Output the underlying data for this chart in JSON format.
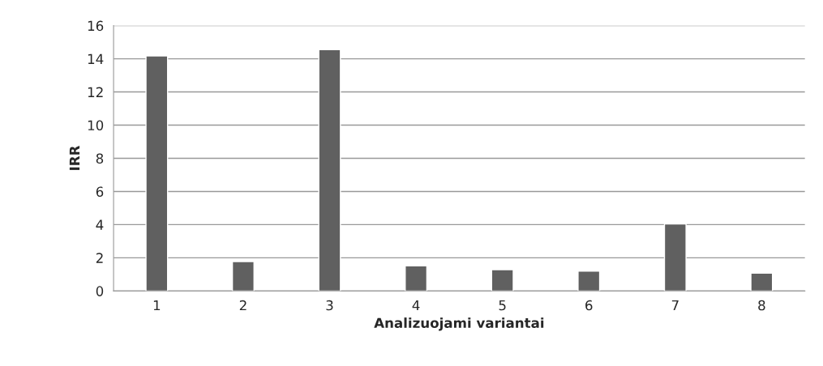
{
  "chart_data": {
    "type": "bar",
    "xlabel": "Analizuojami variantai",
    "ylabel": "IRR",
    "categories": [
      "1",
      "2",
      "3",
      "4",
      "5",
      "6",
      "7",
      "8"
    ],
    "values": [
      14.17,
      1.77,
      14.55,
      1.51,
      1.28,
      1.2,
      4.04,
      1.07
    ],
    "color": "#606060",
    "ylim": [
      0,
      16
    ],
    "yticks": [
      0,
      2,
      4,
      6,
      8,
      10,
      12,
      14,
      16
    ],
    "grid": "y"
  }
}
